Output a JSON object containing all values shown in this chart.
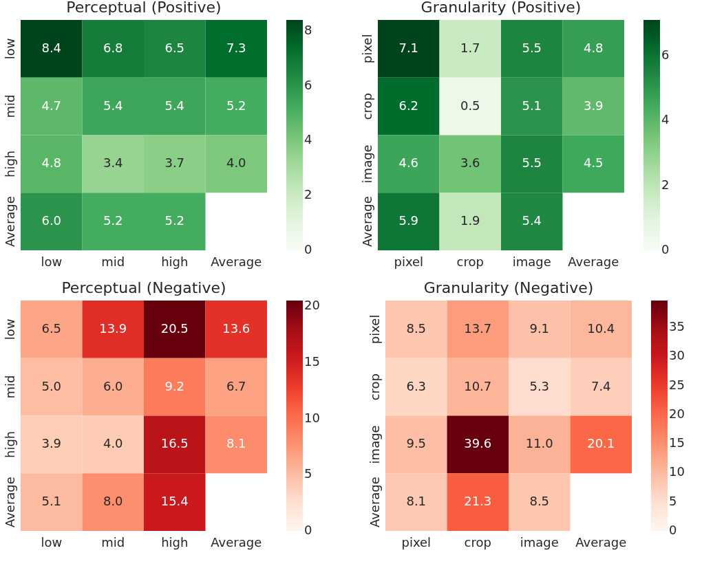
{
  "chart_data": [
    {
      "type": "heatmap",
      "title": "Perceptual (Positive)",
      "categories": [
        "low",
        "mid",
        "high",
        "Average"
      ],
      "y_categories": [
        "low",
        "mid",
        "high",
        "Average"
      ],
      "cells": [
        [
          8.4,
          6.8,
          6.5,
          7.3
        ],
        [
          4.7,
          5.4,
          5.4,
          5.2
        ],
        [
          4.8,
          3.4,
          3.7,
          4.0
        ],
        [
          6.0,
          5.2,
          5.2,
          null
        ]
      ],
      "cell_labels": [
        [
          "8.4",
          "6.8",
          "6.5",
          "7.3"
        ],
        [
          "4.7",
          "5.4",
          "5.4",
          "5.2"
        ],
        [
          "4.8",
          "3.4",
          "3.7",
          "4.0"
        ],
        [
          "6.0",
          "5.2",
          "5.2",
          null
        ]
      ],
      "clim": [
        0,
        8.4
      ],
      "cticks": [
        0,
        2,
        4,
        6,
        8
      ],
      "colors": [
        "#f7fcf5",
        "#e5f5e0",
        "#c7e9c0",
        "#a1d99b",
        "#74c476",
        "#41ab5d",
        "#238b45",
        "#006d2c",
        "#00441b"
      ]
    },
    {
      "type": "heatmap",
      "title": "Granularity (Positive)",
      "categories": [
        "pixel",
        "crop",
        "image",
        "Average"
      ],
      "y_categories": [
        "pixel",
        "crop",
        "image",
        "Average"
      ],
      "cells": [
        [
          7.1,
          1.7,
          5.5,
          4.8
        ],
        [
          6.2,
          0.5,
          5.1,
          3.9
        ],
        [
          4.6,
          3.6,
          5.5,
          4.5
        ],
        [
          5.9,
          1.9,
          5.4,
          null
        ]
      ],
      "cell_labels": [
        [
          "7.1",
          "1.7",
          "5.5",
          "4.8"
        ],
        [
          "6.2",
          "0.5",
          "5.1",
          "3.9"
        ],
        [
          "4.6",
          "3.6",
          "5.5",
          "4.5"
        ],
        [
          "5.9",
          "1.9",
          "5.4",
          null
        ]
      ],
      "clim": [
        0,
        7.1
      ],
      "cticks": [
        0,
        2,
        4,
        6
      ],
      "colors": [
        "#f7fcf5",
        "#e5f5e0",
        "#c7e9c0",
        "#a1d99b",
        "#74c476",
        "#41ab5d",
        "#238b45",
        "#006d2c",
        "#00441b"
      ]
    },
    {
      "type": "heatmap",
      "title": "Perceptual (Negative)",
      "categories": [
        "low",
        "mid",
        "high",
        "Average"
      ],
      "y_categories": [
        "low",
        "mid",
        "high",
        "Average"
      ],
      "cells": [
        [
          6.5,
          13.9,
          20.5,
          13.6
        ],
        [
          5.0,
          6.0,
          9.2,
          6.7
        ],
        [
          3.9,
          4.0,
          16.5,
          8.1
        ],
        [
          5.1,
          8.0,
          15.4,
          null
        ]
      ],
      "cell_labels": [
        [
          "6.5",
          "13.9",
          "20.5",
          "13.6"
        ],
        [
          "5.0",
          "6.0",
          "9.2",
          "6.7"
        ],
        [
          "3.9",
          "4.0",
          "16.5",
          "8.1"
        ],
        [
          "5.1",
          "8.0",
          "15.4",
          null
        ]
      ],
      "clim": [
        0,
        20.5
      ],
      "cticks": [
        0,
        5,
        10,
        15,
        20
      ],
      "colors": [
        "#fff5f0",
        "#fee0d2",
        "#fcbba1",
        "#fc9272",
        "#fb6a4a",
        "#ef3b2c",
        "#cb181d",
        "#a50f15",
        "#67000d"
      ]
    },
    {
      "type": "heatmap",
      "title": "Granularity (Negative)",
      "categories": [
        "pixel",
        "crop",
        "image",
        "Average"
      ],
      "y_categories": [
        "pixel",
        "crop",
        "image",
        "Average"
      ],
      "cells": [
        [
          8.5,
          13.7,
          9.1,
          10.4
        ],
        [
          6.3,
          10.7,
          5.3,
          7.4
        ],
        [
          9.5,
          39.6,
          11.0,
          20.1
        ],
        [
          8.1,
          21.3,
          8.5,
          null
        ]
      ],
      "cell_labels": [
        [
          "8.5",
          "13.7",
          "9.1",
          "10.4"
        ],
        [
          "6.3",
          "10.7",
          "5.3",
          "7.4"
        ],
        [
          "9.5",
          "39.6",
          "11.0",
          "20.1"
        ],
        [
          "8.1",
          "21.3",
          "8.5",
          null
        ]
      ],
      "clim": [
        0,
        39.6
      ],
      "cticks": [
        0,
        5,
        10,
        15,
        20,
        25,
        30,
        35
      ],
      "colors": [
        "#fff5f0",
        "#fee0d2",
        "#fcbba1",
        "#fc9272",
        "#fb6a4a",
        "#ef3b2c",
        "#cb181d",
        "#a50f15",
        "#67000d"
      ]
    }
  ]
}
